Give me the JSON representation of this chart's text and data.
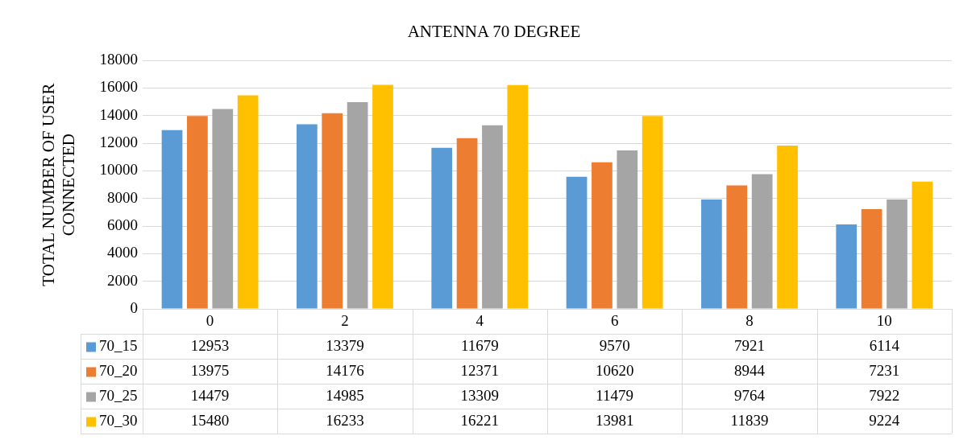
{
  "chart_data": {
    "type": "bar",
    "title": "ANTENNA 70 DEGREE",
    "ylabel": "TOTAL NUMBER OF USER CONNECTED",
    "categories": [
      "0",
      "2",
      "4",
      "6",
      "8",
      "10"
    ],
    "series": [
      {
        "name": "70_15",
        "color": "#5b9bd5",
        "values": [
          12953,
          13379,
          11679,
          9570,
          7921,
          6114
        ]
      },
      {
        "name": "70_20",
        "color": "#ed7d31",
        "values": [
          13975,
          14176,
          12371,
          10620,
          8944,
          7231
        ]
      },
      {
        "name": "70_25",
        "color": "#a5a5a5",
        "values": [
          14479,
          14985,
          13309,
          11479,
          9764,
          7922
        ]
      },
      {
        "name": "70_30",
        "color": "#ffc000",
        "values": [
          15480,
          16233,
          16221,
          13981,
          11839,
          9224
        ]
      }
    ],
    "ylim": [
      0,
      18000
    ],
    "yticks": [
      0,
      2000,
      4000,
      6000,
      8000,
      10000,
      12000,
      14000,
      16000,
      18000
    ],
    "grid": "y",
    "legend": "bottom",
    "data_labels": true
  }
}
